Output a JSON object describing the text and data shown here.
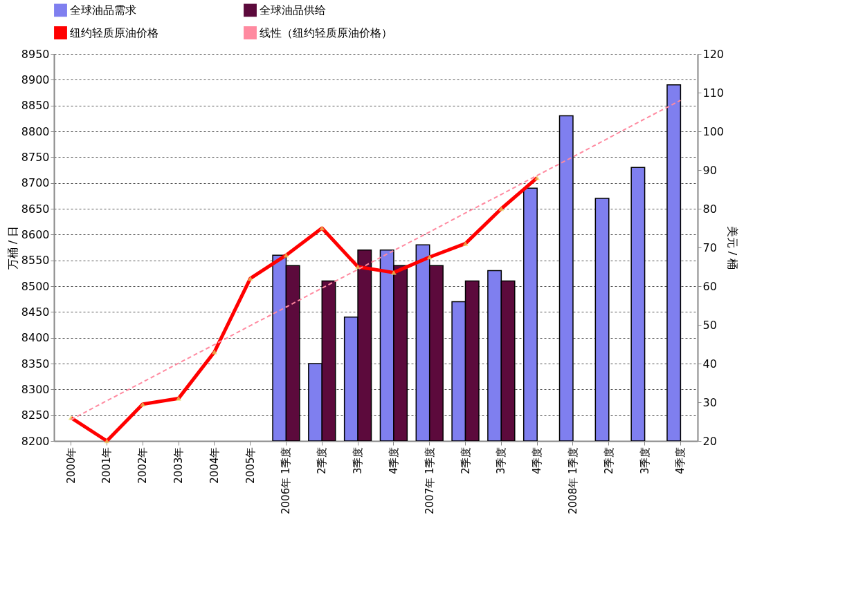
{
  "chart_data": {
    "type": "bar",
    "ylabel": "万桶 / 日",
    "y2label": "美元 / 桶",
    "categories": [
      "2000年",
      "2001年",
      "2002年",
      "2003年",
      "2004年",
      "2005年",
      "2006年 1季度",
      "2季度",
      "3季度",
      "4季度",
      "2007年 1季度",
      "2季度",
      "3季度",
      "4季度",
      "2008年 1季度",
      "2季度",
      "3季度",
      "4季度"
    ],
    "series": [
      {
        "name": "全球油品需求",
        "color": "#7f7fef",
        "values": [
          null,
          null,
          null,
          null,
          null,
          null,
          8560,
          8350,
          8440,
          8570,
          8580,
          8470,
          8530,
          8690,
          8830,
          8670,
          8730,
          8890
        ]
      },
      {
        "name": "全球油品供给",
        "color": "#5c0a3c",
        "values": [
          null,
          null,
          null,
          null,
          null,
          null,
          8540,
          8510,
          8570,
          8540,
          8540,
          8510,
          8510,
          null,
          null,
          null,
          null,
          null
        ]
      },
      {
        "name": "纽约轻质原油价格",
        "type": "line",
        "axis": "y2",
        "color": "#ff0000",
        "marker": "triangle",
        "values": [
          26,
          20,
          29.5,
          31,
          43,
          62,
          68,
          75,
          65,
          63.5,
          67.5,
          71,
          80,
          88,
          null,
          null,
          null,
          null
        ]
      },
      {
        "name": "线性（纽约轻质原油价格）",
        "type": "line",
        "axis": "y2",
        "color": "#ff8aa0",
        "line_style": "dashed",
        "marker": "none",
        "values": [
          25.5,
          30.4,
          35.2,
          40.1,
          44.9,
          49.8,
          54.6,
          59.5,
          64.3,
          69.2,
          74.0,
          78.9,
          83.7,
          88.6,
          93.4,
          98.3,
          103.2,
          108.0
        ]
      }
    ],
    "ylim": [
      8200,
      8950
    ],
    "yticks": [
      8200,
      8250,
      8300,
      8350,
      8400,
      8450,
      8500,
      8550,
      8600,
      8650,
      8700,
      8750,
      8800,
      8850,
      8900,
      8950
    ],
    "y2lim": [
      20,
      120
    ],
    "y2ticks": [
      20,
      30,
      40,
      50,
      60,
      70,
      80,
      90,
      100,
      110,
      120
    ],
    "grid": "y",
    "legend": "top"
  }
}
